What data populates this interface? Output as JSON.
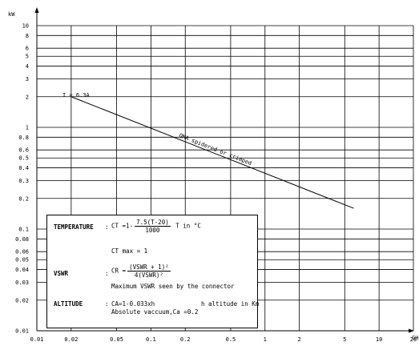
{
  "chart_data": {
    "type": "line",
    "y_unit": "kW",
    "x_unit": "GHz",
    "x_scale": "log",
    "y_scale": "log",
    "xlim": [
      0.01,
      20
    ],
    "ylim": [
      0.01,
      10
    ],
    "x_ticks": [
      {
        "value": 0.01,
        "label": "0.01"
      },
      {
        "value": 0.02,
        "label": "0.02"
      },
      {
        "value": 0.05,
        "label": "0.05"
      },
      {
        "value": 0.1,
        "label": "0.1"
      },
      {
        "value": 0.2,
        "label": "0.2"
      },
      {
        "value": 0.5,
        "label": "0.5"
      },
      {
        "value": 1,
        "label": "1"
      },
      {
        "value": 2,
        "label": "2"
      },
      {
        "value": 5,
        "label": "5"
      },
      {
        "value": 10,
        "label": "10"
      },
      {
        "value": 20,
        "label": "20"
      }
    ],
    "y_ticks": [
      {
        "value": 10,
        "label": "10"
      },
      {
        "value": 8,
        "label": "8"
      },
      {
        "value": 6,
        "label": "6"
      },
      {
        "value": 5,
        "label": "5"
      },
      {
        "value": 4,
        "label": "4"
      },
      {
        "value": 3,
        "label": "3"
      },
      {
        "value": 2,
        "label": "2"
      },
      {
        "value": 1,
        "label": "1"
      },
      {
        "value": 0.8,
        "label": "0.8"
      },
      {
        "value": 0.6,
        "label": "0.6"
      },
      {
        "value": 0.5,
        "label": "0.5"
      },
      {
        "value": 0.4,
        "label": "0.4"
      },
      {
        "value": 0.3,
        "label": "0.3"
      },
      {
        "value": 0.2,
        "label": "0.2"
      },
      {
        "value": 0.1,
        "label": "0.1"
      },
      {
        "value": 0.08,
        "label": "0.08"
      },
      {
        "value": 0.06,
        "label": "0.06"
      },
      {
        "value": 0.05,
        "label": "0.05"
      },
      {
        "value": 0.04,
        "label": "0.04"
      },
      {
        "value": 0.03,
        "label": "0.03"
      },
      {
        "value": 0.02,
        "label": "0.02"
      },
      {
        "value": 0.01,
        "label": "0.01"
      }
    ],
    "series": [
      {
        "name": "QMA spidered or crimped",
        "x": [
          0.02,
          6
        ],
        "y": [
          2,
          0.16
        ]
      }
    ],
    "annotations": {
      "start_label": "I = 6.3A"
    },
    "grid": true
  },
  "legend": {
    "temperature_label": "TEMPERATURE",
    "temperature_prefix": "CT =1-",
    "temperature_num": "7.5(T-20)",
    "temperature_den": "1000",
    "temperature_suffix": "T in °C",
    "ct_max": "CT max = 1",
    "vswr_label": "VSWR",
    "vswr_prefix": "CR =",
    "vswr_num": "(VSWR + 1)²",
    "vswr_den": "4(VSWR)²",
    "vswr_note": "Maximum VSWR seen by the connector",
    "altitude_label": "ALTITUDE",
    "altitude_formula": "CA=1-0.033xh",
    "altitude_note": "h altitude in Km",
    "altitude_vacuum": "Absolute vaccuum,Ca =0.2",
    "colon": ":"
  }
}
